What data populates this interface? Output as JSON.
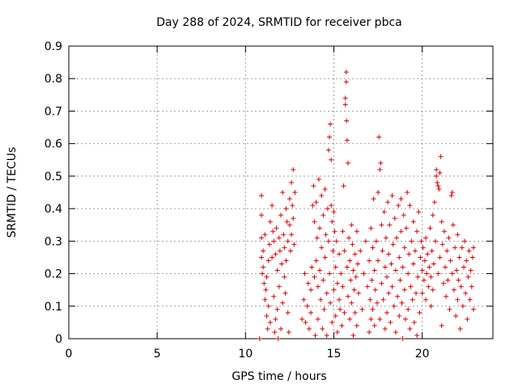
{
  "chart_data": {
    "type": "scatter",
    "title": "Day 288 of 2024, SRMTID for receiver pbca",
    "xlabel": "GPS time / hours",
    "ylabel": "SRMTID / TECUs",
    "xlim": [
      0,
      24
    ],
    "ylim": [
      0,
      0.9
    ],
    "xticks": [
      0,
      5,
      10,
      15,
      20
    ],
    "yticks": [
      0,
      0.1,
      0.2,
      0.3,
      0.4,
      0.5,
      0.6,
      0.7,
      0.8,
      0.9
    ],
    "grid": true,
    "marker": "+",
    "color": "#dd0000",
    "series": [
      {
        "points": [
          [
            10.8,
            0.0
          ],
          [
            10.9,
            0.44
          ],
          [
            10.9,
            0.38
          ],
          [
            10.9,
            0.31
          ],
          [
            10.9,
            0.25
          ],
          [
            10.95,
            0.2
          ],
          [
            11.0,
            0.27
          ],
          [
            11.0,
            0.22
          ],
          [
            11.05,
            0.17
          ],
          [
            11.1,
            0.32
          ],
          [
            11.1,
            0.12
          ],
          [
            11.15,
            0.15
          ],
          [
            11.2,
            0.19
          ],
          [
            11.2,
            0.07
          ],
          [
            11.25,
            0.03
          ],
          [
            11.3,
            0.24
          ],
          [
            11.3,
            0.1
          ],
          [
            11.35,
            0.29
          ],
          [
            11.4,
            0.36
          ],
          [
            11.4,
            0.05
          ],
          [
            11.5,
            0.41
          ],
          [
            11.5,
            0.25
          ],
          [
            11.55,
            0.33
          ],
          [
            11.6,
            0.3
          ],
          [
            11.6,
            0.13
          ],
          [
            11.65,
            0.02
          ],
          [
            11.7,
            0.26
          ],
          [
            11.7,
            0.06
          ],
          [
            11.75,
            0.34
          ],
          [
            11.8,
            0.21
          ],
          [
            11.8,
            0.09
          ],
          [
            11.85,
            0.0
          ],
          [
            11.9,
            0.31
          ],
          [
            11.9,
            0.16
          ],
          [
            11.95,
            0.27
          ],
          [
            12.0,
            0.38
          ],
          [
            12.0,
            0.03
          ],
          [
            12.05,
            0.23
          ],
          [
            12.1,
            0.45
          ],
          [
            12.1,
            0.11
          ],
          [
            12.15,
            0.32
          ],
          [
            12.2,
            0.28
          ],
          [
            12.2,
            0.19
          ],
          [
            12.25,
            0.14
          ],
          [
            12.3,
            0.4
          ],
          [
            12.3,
            0.24
          ],
          [
            12.35,
            0.36
          ],
          [
            12.4,
            0.3
          ],
          [
            12.4,
            0.08
          ],
          [
            12.45,
            0.02
          ],
          [
            12.5,
            0.35
          ],
          [
            12.5,
            0.43
          ],
          [
            12.55,
            0.27
          ],
          [
            12.6,
            0.48
          ],
          [
            12.6,
            0.32
          ],
          [
            12.65,
            0.41
          ],
          [
            12.7,
            0.52
          ],
          [
            12.7,
            0.37
          ],
          [
            12.75,
            0.29
          ],
          [
            12.8,
            0.45
          ],
          [
            13.2,
            0.06
          ],
          [
            13.3,
            0.12
          ],
          [
            13.35,
            0.2
          ],
          [
            13.4,
            0.05
          ],
          [
            13.5,
            0.1
          ],
          [
            13.55,
            0.17
          ],
          [
            13.6,
            0.03
          ],
          [
            13.7,
            0.15
          ],
          [
            13.7,
            0.08
          ],
          [
            13.75,
            0.22
          ],
          [
            13.8,
            0.41
          ],
          [
            13.85,
            0.47
          ],
          [
            13.9,
            0.36
          ],
          [
            13.9,
            0.19
          ],
          [
            13.95,
            0.01
          ],
          [
            14.0,
            0.42
          ],
          [
            14.0,
            0.24
          ],
          [
            14.05,
            0.31
          ],
          [
            14.1,
            0.16
          ],
          [
            14.1,
            0.06
          ],
          [
            14.15,
            0.49
          ],
          [
            14.2,
            0.34
          ],
          [
            14.2,
            0.21
          ],
          [
            14.25,
            0.12
          ],
          [
            14.3,
            0.44
          ],
          [
            14.3,
            0.28
          ],
          [
            14.35,
            0.03
          ],
          [
            14.4,
            0.38
          ],
          [
            14.4,
            0.18
          ],
          [
            14.45,
            0.09
          ],
          [
            14.5,
            0.46
          ],
          [
            14.5,
            0.25
          ],
          [
            14.55,
            0.32
          ],
          [
            14.6,
            0.14
          ],
          [
            14.6,
            0.01
          ],
          [
            14.65,
            0.4
          ],
          [
            14.7,
            0.58
          ],
          [
            14.7,
            0.3
          ],
          [
            14.75,
            0.62
          ],
          [
            14.75,
            0.2
          ],
          [
            14.8,
            0.66
          ],
          [
            14.8,
            0.11
          ],
          [
            14.85,
            0.55
          ],
          [
            14.85,
            0.41
          ],
          [
            14.9,
            0.36
          ],
          [
            14.9,
            0.05
          ],
          [
            14.95,
            0.27
          ],
          [
            15.0,
            0.39
          ],
          [
            15.0,
            0.15
          ],
          [
            15.05,
            0.33
          ],
          [
            15.1,
            0.22
          ],
          [
            15.1,
            0.07
          ],
          [
            15.15,
            0.3
          ],
          [
            15.2,
            0.17
          ],
          [
            15.2,
            0.02
          ],
          [
            15.3,
            0.26
          ],
          [
            15.3,
            0.12
          ],
          [
            15.35,
            0.09
          ],
          [
            15.4,
            0.2
          ],
          [
            15.45,
            0.04
          ],
          [
            15.5,
            0.33
          ],
          [
            15.5,
            0.16
          ],
          [
            15.55,
            0.47
          ],
          [
            15.6,
            0.27
          ],
          [
            15.6,
            0.08
          ],
          [
            15.65,
            0.74
          ],
          [
            15.65,
            0.72
          ],
          [
            15.7,
            0.82
          ],
          [
            15.7,
            0.79
          ],
          [
            15.72,
            0.67
          ],
          [
            15.75,
            0.61
          ],
          [
            15.75,
            0.22
          ],
          [
            15.8,
            0.54
          ],
          [
            15.8,
            0.13
          ],
          [
            15.85,
            0.31
          ],
          [
            15.9,
            0.24
          ],
          [
            15.9,
            0.06
          ],
          [
            15.95,
            0.18
          ],
          [
            16.0,
            0.35
          ],
          [
            16.0,
            0.11
          ],
          [
            16.05,
            0.29
          ],
          [
            16.1,
            0.21
          ],
          [
            16.1,
            0.01
          ],
          [
            16.15,
            0.15
          ],
          [
            16.2,
            0.26
          ],
          [
            16.2,
            0.08
          ],
          [
            16.25,
            0.19
          ],
          [
            16.3,
            0.33
          ],
          [
            16.3,
            0.04
          ],
          [
            16.35,
            0.23
          ],
          [
            16.4,
            0.14
          ],
          [
            16.5,
            0.27
          ],
          [
            16.6,
            0.09
          ],
          [
            16.7,
            0.2
          ],
          [
            16.8,
            0.3
          ],
          [
            16.9,
            0.16
          ],
          [
            17.0,
            0.24
          ],
          [
            17.0,
            0.02
          ],
          [
            17.05,
            0.12
          ],
          [
            17.1,
            0.34
          ],
          [
            17.1,
            0.06
          ],
          [
            17.15,
            0.18
          ],
          [
            17.2,
            0.28
          ],
          [
            17.2,
            0.09
          ],
          [
            17.25,
            0.43
          ],
          [
            17.3,
            0.21
          ],
          [
            17.3,
            0.04
          ],
          [
            17.35,
            0.15
          ],
          [
            17.4,
            0.3
          ],
          [
            17.45,
            0.11
          ],
          [
            17.5,
            0.45
          ],
          [
            17.5,
            0.24
          ],
          [
            17.55,
            0.62
          ],
          [
            17.6,
            0.52
          ],
          [
            17.6,
            0.06
          ],
          [
            17.65,
            0.54
          ],
          [
            17.7,
            0.35
          ],
          [
            17.7,
            0.17
          ],
          [
            17.75,
            0.27
          ],
          [
            17.8,
            0.12
          ],
          [
            17.85,
            0.39
          ],
          [
            17.9,
            0.22
          ],
          [
            17.9,
            0.03
          ],
          [
            17.95,
            0.31
          ],
          [
            18.0,
            0.19
          ],
          [
            18.0,
            0.08
          ],
          [
            18.05,
            0.42
          ],
          [
            18.1,
            0.26
          ],
          [
            18.1,
            0.14
          ],
          [
            18.15,
            0.35
          ],
          [
            18.2,
            0.05
          ],
          [
            18.25,
            0.23
          ],
          [
            18.3,
            0.44
          ],
          [
            18.3,
            0.16
          ],
          [
            18.35,
            0.29
          ],
          [
            18.4,
            0.1
          ],
          [
            18.45,
            0.37
          ],
          [
            18.5,
            0.21
          ],
          [
            18.5,
            0.02
          ],
          [
            18.55,
            0.31
          ],
          [
            18.6,
            0.13
          ],
          [
            18.65,
            0.41
          ],
          [
            18.7,
            0.25
          ],
          [
            18.7,
            0.07
          ],
          [
            18.75,
            0.18
          ],
          [
            18.8,
            0.43
          ],
          [
            18.8,
            0.33
          ],
          [
            18.85,
            0.11
          ],
          [
            18.9,
            0.22
          ],
          [
            18.9,
            0.0
          ],
          [
            18.95,
            0.38
          ],
          [
            19.0,
            0.28
          ],
          [
            19.0,
            0.15
          ],
          [
            19.05,
            0.06
          ],
          [
            19.1,
            0.34
          ],
          [
            19.15,
            0.45
          ],
          [
            19.2,
            0.2
          ],
          [
            19.2,
            0.09
          ],
          [
            19.25,
            0.26
          ],
          [
            19.3,
            0.41
          ],
          [
            19.3,
            0.03
          ],
          [
            19.35,
            0.16
          ],
          [
            19.4,
            0.3
          ],
          [
            19.45,
            0.12
          ],
          [
            19.5,
            0.36
          ],
          [
            19.5,
            0.23
          ],
          [
            19.55,
            0.05
          ],
          [
            19.6,
            0.27
          ],
          [
            19.65,
            0.14
          ],
          [
            19.7,
            0.33
          ],
          [
            19.7,
            0.01
          ],
          [
            19.75,
            0.19
          ],
          [
            19.8,
            0.39
          ],
          [
            19.85,
            0.08
          ],
          [
            19.9,
            0.25
          ],
          [
            19.95,
            0.3
          ],
          [
            20.0,
            0.21
          ],
          [
            20.0,
            0.14
          ],
          [
            20.05,
            0.28
          ],
          [
            20.1,
            0.18
          ],
          [
            20.15,
            0.24
          ],
          [
            20.2,
            0.31
          ],
          [
            20.2,
            0.12
          ],
          [
            20.25,
            0.2
          ],
          [
            20.3,
            0.26
          ],
          [
            20.35,
            0.16
          ],
          [
            20.4,
            0.22
          ],
          [
            20.45,
            0.34
          ],
          [
            20.5,
            0.19
          ],
          [
            20.5,
            0.1
          ],
          [
            20.55,
            0.27
          ],
          [
            20.6,
            0.38
          ],
          [
            20.6,
            0.15
          ],
          [
            20.65,
            0.23
          ],
          [
            20.7,
            0.42
          ],
          [
            20.75,
            0.3
          ],
          [
            20.8,
            0.52
          ],
          [
            20.8,
            0.5
          ],
          [
            20.85,
            0.48
          ],
          [
            20.9,
            0.47
          ],
          [
            20.9,
            0.2
          ],
          [
            20.95,
            0.46
          ],
          [
            21.0,
            0.51
          ],
          [
            21.0,
            0.25
          ],
          [
            21.05,
            0.56
          ],
          [
            21.1,
            0.36
          ],
          [
            21.1,
            0.04
          ],
          [
            21.15,
            0.29
          ],
          [
            21.2,
            0.17
          ],
          [
            21.25,
            0.33
          ],
          [
            21.3,
            0.22
          ],
          [
            21.35,
            0.13
          ],
          [
            21.4,
            0.27
          ],
          [
            21.45,
            0.18
          ],
          [
            21.5,
            0.31
          ],
          [
            21.55,
            0.09
          ],
          [
            21.6,
            0.24
          ],
          [
            21.65,
            0.44
          ],
          [
            21.7,
            0.45
          ],
          [
            21.7,
            0.2
          ],
          [
            21.75,
            0.35
          ],
          [
            21.8,
            0.15
          ],
          [
            21.85,
            0.28
          ],
          [
            21.9,
            0.07
          ],
          [
            21.95,
            0.21
          ],
          [
            22.0,
            0.32
          ],
          [
            22.0,
            0.12
          ],
          [
            22.05,
            0.18
          ],
          [
            22.1,
            0.25
          ],
          [
            22.15,
            0.03
          ],
          [
            22.2,
            0.16
          ],
          [
            22.25,
            0.28
          ],
          [
            22.3,
            0.1
          ],
          [
            22.35,
            0.22
          ],
          [
            22.4,
            0.3
          ],
          [
            22.45,
            0.14
          ],
          [
            22.5,
            0.24
          ],
          [
            22.55,
            0.06
          ],
          [
            22.6,
            0.19
          ],
          [
            22.65,
            0.27
          ],
          [
            22.7,
            0.12
          ],
          [
            22.75,
            0.21
          ],
          [
            22.8,
            0.16
          ],
          [
            22.85,
            0.25
          ],
          [
            22.9,
            0.09
          ],
          [
            22.9,
            0.28
          ]
        ]
      }
    ]
  }
}
